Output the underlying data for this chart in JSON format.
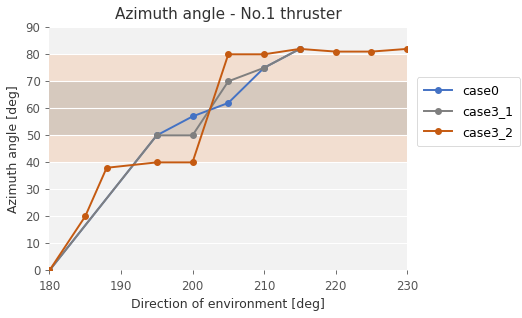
{
  "title": "Azimuth angle - No.1 thruster",
  "xlabel": "Direction of environment [deg]",
  "ylabel": "Azimuth angle [deg]",
  "xlim": [
    180,
    230
  ],
  "ylim": [
    0,
    90
  ],
  "xticks": [
    180,
    190,
    200,
    210,
    220,
    230
  ],
  "yticks": [
    0,
    10,
    20,
    30,
    40,
    50,
    60,
    70,
    80,
    90
  ],
  "case0_x": [
    180,
    195,
    200,
    205,
    210,
    215
  ],
  "case0_y": [
    0,
    50,
    57,
    62,
    75,
    82
  ],
  "case0_color": "#4472C4",
  "case3_1_x": [
    180,
    195,
    200,
    205,
    210,
    215
  ],
  "case3_1_y": [
    0,
    50,
    50,
    70,
    75,
    82
  ],
  "case3_1_color": "#7F7F7F",
  "case3_2_x": [
    180,
    185,
    188,
    195,
    200,
    205,
    210,
    215,
    220,
    225,
    230
  ],
  "case3_2_y": [
    0,
    20,
    38,
    40,
    40,
    80,
    80,
    82,
    81,
    81,
    82
  ],
  "case3_2_color": "#C55A11",
  "band_grey_low": 50,
  "band_grey_high": 70,
  "band_grey_color": "#C0B8B0",
  "band_grey_alpha": 0.55,
  "band_peach_low": 40,
  "band_peach_high": 80,
  "band_peach_color": "#F4C7A8",
  "band_peach_alpha": 0.45,
  "plot_bg_color": "#F2F2F2",
  "fig_bg_color": "#FFFFFF",
  "title_fontsize": 11,
  "label_fontsize": 9,
  "tick_fontsize": 8.5
}
